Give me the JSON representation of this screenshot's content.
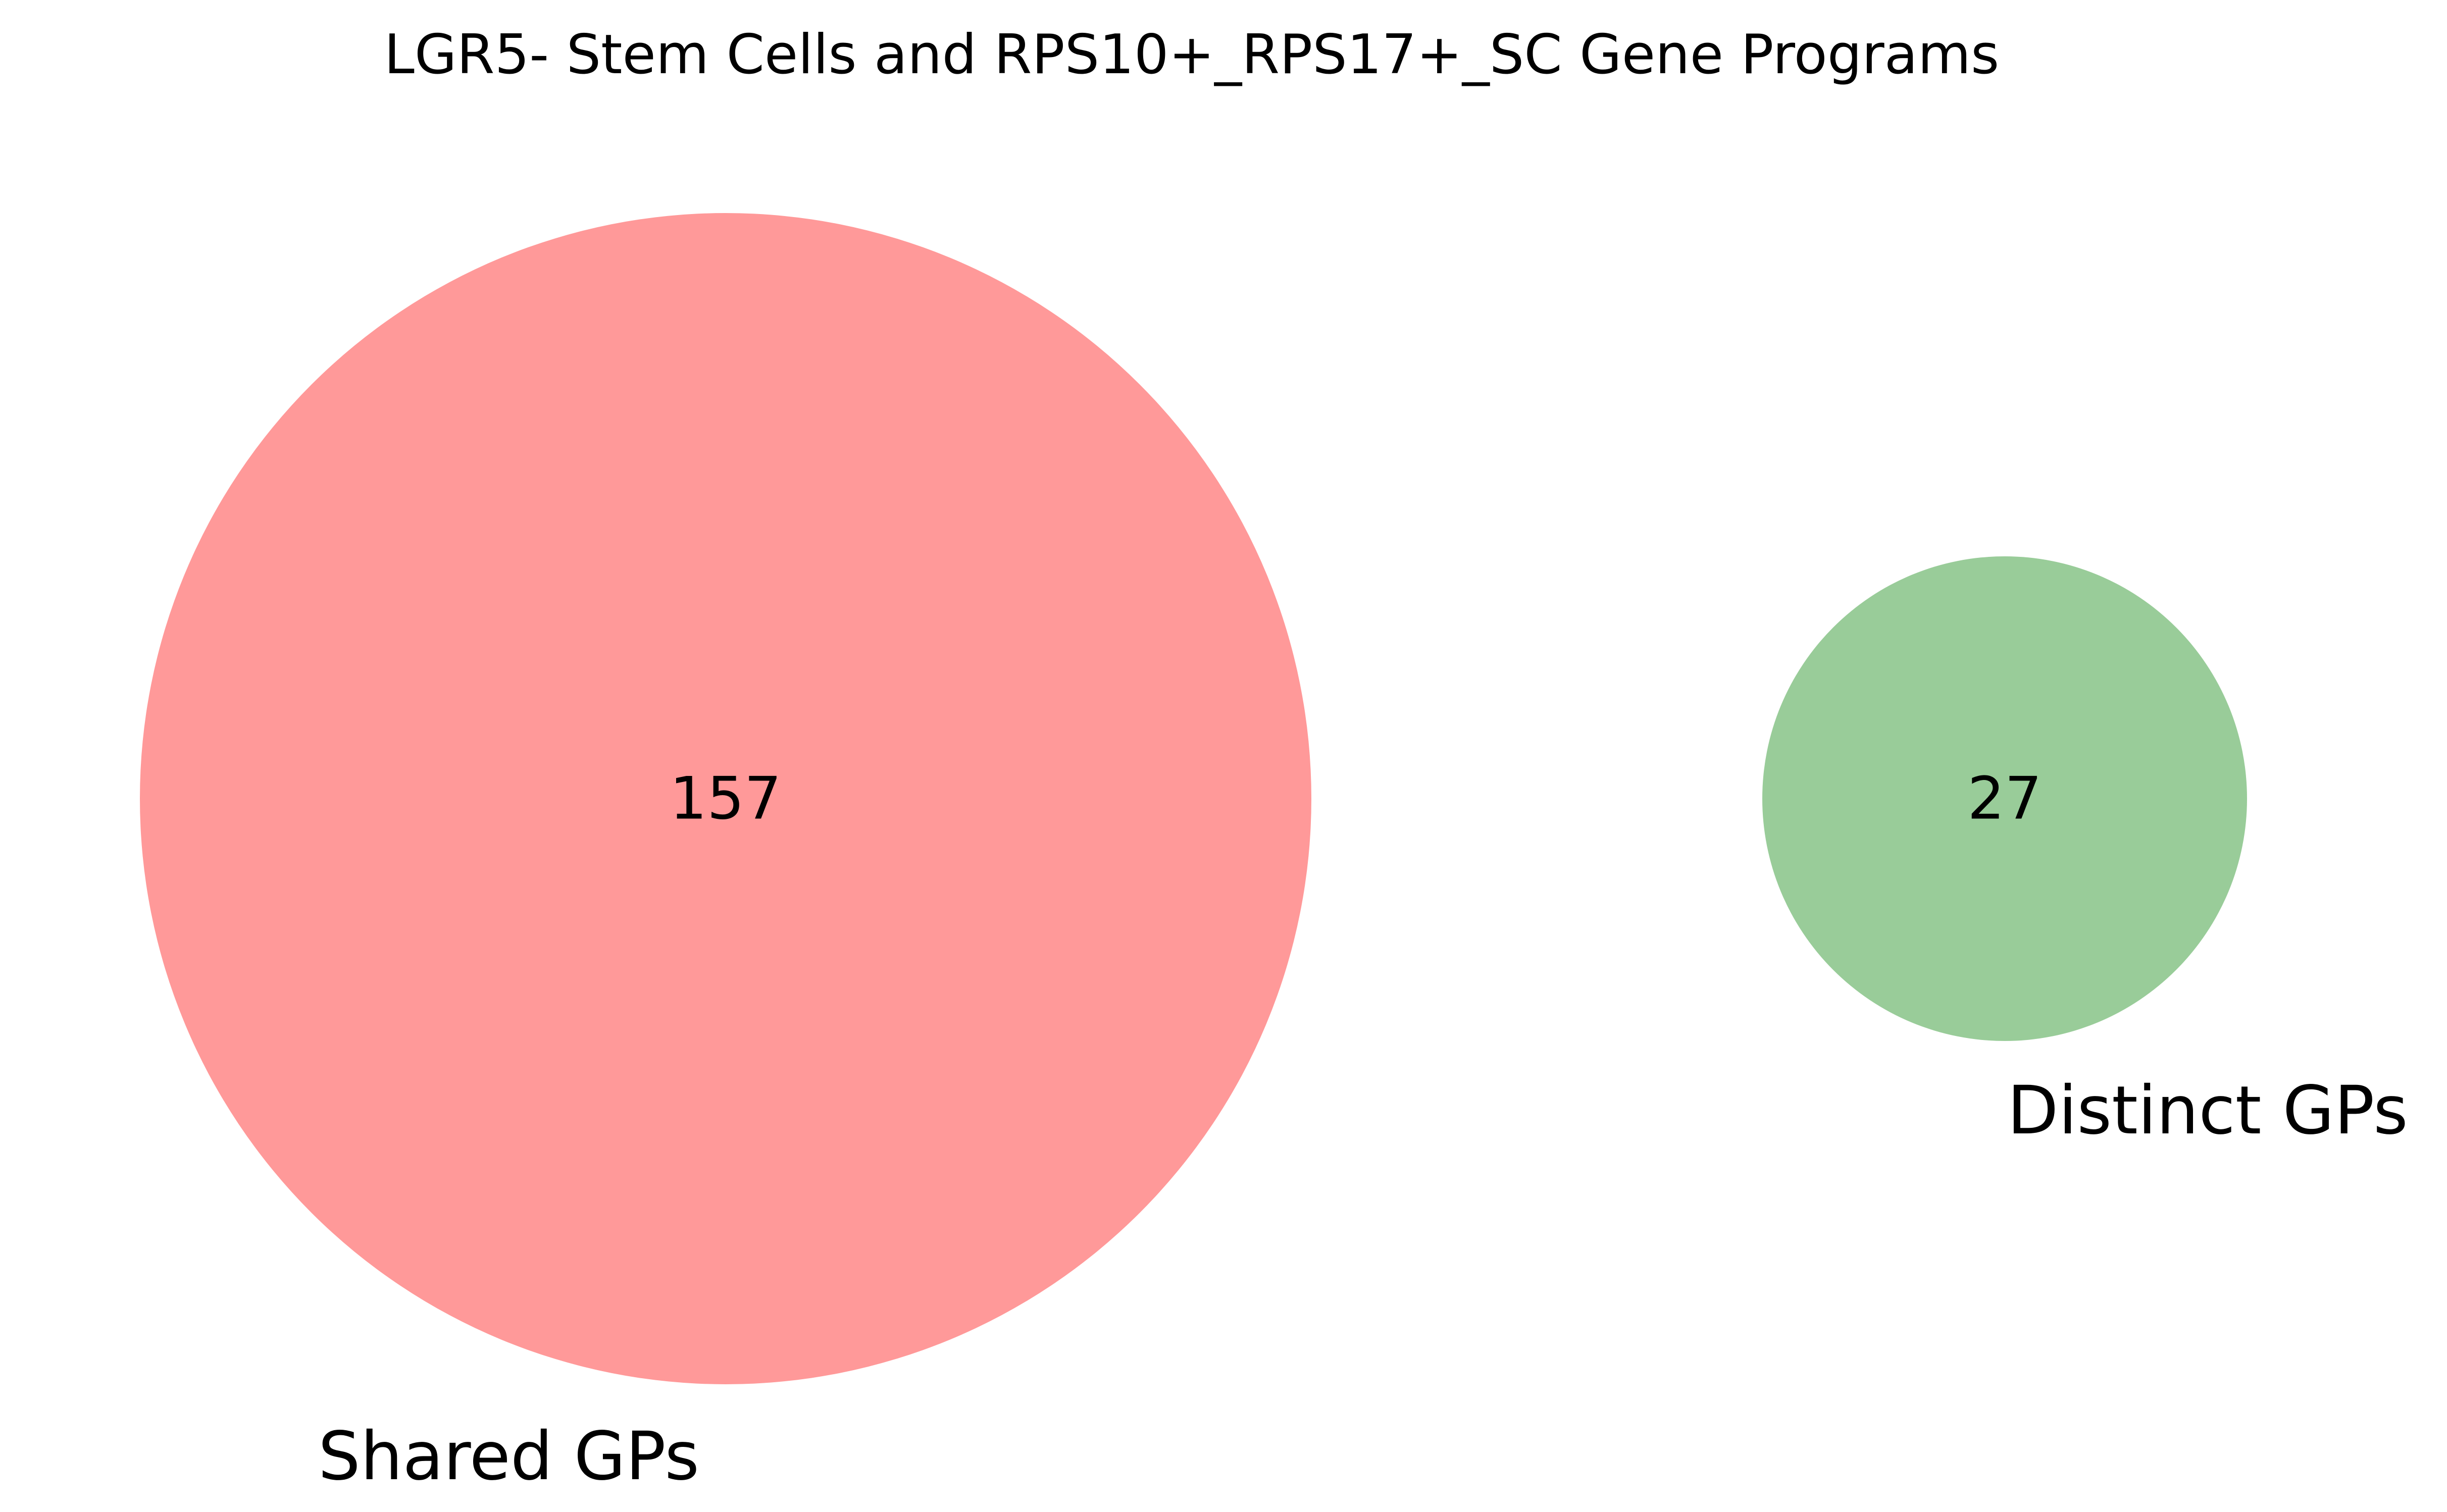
{
  "chart_data": {
    "type": "venn",
    "title": "LGR5- Stem Cells and RPS10+_RPS17+_SC Gene Programs",
    "sets": [
      {
        "label": "Shared GPs",
        "count": "157",
        "value": 157,
        "color": "#ff9999"
      },
      {
        "label": "Distinct GPs",
        "count": "27",
        "value": 27,
        "color": "#99cc99"
      }
    ],
    "overlap": 0
  }
}
